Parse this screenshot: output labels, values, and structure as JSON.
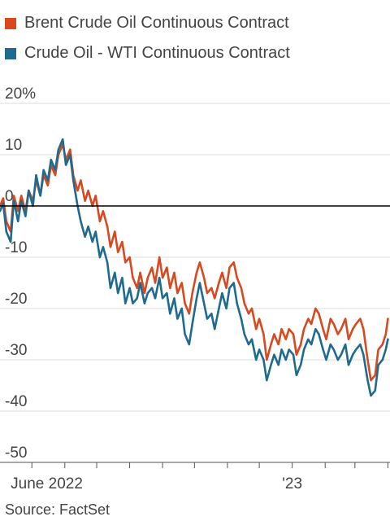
{
  "legend": [
    {
      "label": "Brent Crude Oil Continuous Contract",
      "color": "#d9481f"
    },
    {
      "label": "Crude Oil - WTI Continuous Contract",
      "color": "#1f6a8f"
    }
  ],
  "source": "Source: FactSet",
  "chart_data": {
    "type": "line",
    "title": "",
    "xlabel": "",
    "ylabel": "",
    "y_unit": "%",
    "ylim": [
      -50,
      20
    ],
    "yticks": [
      20,
      10,
      0,
      -10,
      -20,
      -30,
      -40,
      -50
    ],
    "ytick_labels": [
      "20%",
      "10",
      "0",
      "-10",
      "-20",
      "-30",
      "-40",
      "-50"
    ],
    "xlim": [
      "2022-04-01",
      "2023-04-03"
    ],
    "xticks": [
      "2022-05-01",
      "2022-06-01",
      "2022-07-01",
      "2022-08-01",
      "2022-09-01",
      "2022-10-01",
      "2022-11-01",
      "2022-12-01",
      "2023-01-01",
      "2023-02-01",
      "2023-03-01",
      "2023-04-01"
    ],
    "xtick_labels": [
      {
        "date": "2022-05-15",
        "label": "June 2022"
      },
      {
        "date": "2023-01-01",
        "label": "'23"
      }
    ],
    "grid": true,
    "zero_line": true,
    "legend_position": "top-left",
    "series": [
      {
        "name": "Brent Crude Oil Continuous Contract",
        "color": "#d9481f",
        "points": [
          [
            "2022-04-01",
            0
          ],
          [
            "2022-04-04",
            1.5
          ],
          [
            "2022-04-07",
            -3
          ],
          [
            "2022-04-11",
            -5
          ],
          [
            "2022-04-14",
            2
          ],
          [
            "2022-04-18",
            -1
          ],
          [
            "2022-04-21",
            2
          ],
          [
            "2022-04-25",
            -1
          ],
          [
            "2022-04-28",
            3
          ],
          [
            "2022-05-02",
            1
          ],
          [
            "2022-05-05",
            5
          ],
          [
            "2022-05-09",
            2
          ],
          [
            "2022-05-12",
            6
          ],
          [
            "2022-05-16",
            4
          ],
          [
            "2022-05-19",
            8
          ],
          [
            "2022-05-23",
            6
          ],
          [
            "2022-05-26",
            10
          ],
          [
            "2022-05-30",
            12
          ],
          [
            "2022-06-02",
            9
          ],
          [
            "2022-06-06",
            11
          ],
          [
            "2022-06-09",
            6
          ],
          [
            "2022-06-13",
            3
          ],
          [
            "2022-06-16",
            5
          ],
          [
            "2022-06-20",
            1
          ],
          [
            "2022-06-23",
            3
          ],
          [
            "2022-06-27",
            0
          ],
          [
            "2022-06-30",
            2
          ],
          [
            "2022-07-04",
            -3
          ],
          [
            "2022-07-07",
            -1
          ],
          [
            "2022-07-11",
            -4
          ],
          [
            "2022-07-14",
            -8
          ],
          [
            "2022-07-18",
            -5
          ],
          [
            "2022-07-21",
            -9
          ],
          [
            "2022-07-25",
            -7
          ],
          [
            "2022-07-28",
            -11
          ],
          [
            "2022-08-01",
            -10
          ],
          [
            "2022-08-04",
            -14
          ],
          [
            "2022-08-08",
            -16
          ],
          [
            "2022-08-11",
            -13
          ],
          [
            "2022-08-15",
            -17
          ],
          [
            "2022-08-18",
            -14
          ],
          [
            "2022-08-22",
            -12
          ],
          [
            "2022-08-25",
            -15
          ],
          [
            "2022-08-29",
            -10
          ],
          [
            "2022-09-01",
            -14
          ],
          [
            "2022-09-05",
            -12
          ],
          [
            "2022-09-08",
            -16
          ],
          [
            "2022-09-12",
            -13
          ],
          [
            "2022-09-15",
            -17
          ],
          [
            "2022-09-19",
            -15
          ],
          [
            "2022-09-22",
            -19
          ],
          [
            "2022-09-26",
            -21
          ],
          [
            "2022-09-29",
            -17
          ],
          [
            "2022-10-03",
            -13
          ],
          [
            "2022-10-06",
            -11
          ],
          [
            "2022-10-10",
            -14
          ],
          [
            "2022-10-13",
            -17
          ],
          [
            "2022-10-17",
            -16
          ],
          [
            "2022-10-20",
            -18
          ],
          [
            "2022-10-24",
            -15
          ],
          [
            "2022-10-27",
            -13
          ],
          [
            "2022-10-31",
            -16
          ],
          [
            "2022-11-03",
            -12
          ],
          [
            "2022-11-07",
            -11
          ],
          [
            "2022-11-10",
            -14
          ],
          [
            "2022-11-14",
            -16
          ],
          [
            "2022-11-17",
            -19
          ],
          [
            "2022-11-21",
            -21
          ],
          [
            "2022-11-24",
            -20
          ],
          [
            "2022-11-28",
            -24
          ],
          [
            "2022-12-01",
            -22
          ],
          [
            "2022-12-05",
            -25
          ],
          [
            "2022-12-08",
            -30
          ],
          [
            "2022-12-12",
            -27
          ],
          [
            "2022-12-15",
            -25
          ],
          [
            "2022-12-19",
            -27
          ],
          [
            "2022-12-22",
            -24
          ],
          [
            "2022-12-26",
            -26
          ],
          [
            "2022-12-29",
            -24
          ],
          [
            "2023-01-02",
            -25
          ],
          [
            "2023-01-05",
            -29
          ],
          [
            "2023-01-09",
            -27
          ],
          [
            "2023-01-12",
            -24
          ],
          [
            "2023-01-16",
            -22
          ],
          [
            "2023-01-19",
            -23
          ],
          [
            "2023-01-23",
            -20
          ],
          [
            "2023-01-26",
            -21
          ],
          [
            "2023-01-30",
            -24
          ],
          [
            "2023-02-02",
            -26
          ],
          [
            "2023-02-06",
            -22
          ],
          [
            "2023-02-09",
            -23
          ],
          [
            "2023-02-13",
            -25
          ],
          [
            "2023-02-16",
            -24
          ],
          [
            "2023-02-20",
            -22
          ],
          [
            "2023-02-23",
            -26
          ],
          [
            "2023-02-27",
            -24
          ],
          [
            "2023-03-02",
            -23
          ],
          [
            "2023-03-06",
            -22
          ],
          [
            "2023-03-09",
            -24
          ],
          [
            "2023-03-13",
            -30
          ],
          [
            "2023-03-16",
            -34
          ],
          [
            "2023-03-20",
            -33
          ],
          [
            "2023-03-23",
            -28
          ],
          [
            "2023-03-27",
            -27
          ],
          [
            "2023-03-30",
            -25
          ],
          [
            "2023-04-01",
            -22
          ]
        ]
      },
      {
        "name": "Crude Oil - WTI Continuous Contract",
        "color": "#1f6a8f",
        "points": [
          [
            "2022-04-01",
            -1
          ],
          [
            "2022-04-04",
            0.5
          ],
          [
            "2022-04-07",
            -5
          ],
          [
            "2022-04-11",
            -7
          ],
          [
            "2022-04-14",
            1
          ],
          [
            "2022-04-18",
            -3
          ],
          [
            "2022-04-21",
            1
          ],
          [
            "2022-04-25",
            -2
          ],
          [
            "2022-04-28",
            3
          ],
          [
            "2022-05-02",
            0
          ],
          [
            "2022-05-05",
            6
          ],
          [
            "2022-05-09",
            2
          ],
          [
            "2022-05-12",
            7
          ],
          [
            "2022-05-16",
            5
          ],
          [
            "2022-05-19",
            9
          ],
          [
            "2022-05-23",
            7
          ],
          [
            "2022-05-26",
            11
          ],
          [
            "2022-05-30",
            13
          ],
          [
            "2022-06-02",
            8
          ],
          [
            "2022-06-06",
            10
          ],
          [
            "2022-06-09",
            5
          ],
          [
            "2022-06-13",
            0
          ],
          [
            "2022-06-16",
            -3
          ],
          [
            "2022-06-20",
            -6
          ],
          [
            "2022-06-23",
            -4
          ],
          [
            "2022-06-27",
            -7
          ],
          [
            "2022-06-30",
            -5
          ],
          [
            "2022-07-04",
            -10
          ],
          [
            "2022-07-07",
            -8
          ],
          [
            "2022-07-11",
            -11
          ],
          [
            "2022-07-14",
            -16
          ],
          [
            "2022-07-18",
            -13
          ],
          [
            "2022-07-21",
            -17
          ],
          [
            "2022-07-25",
            -14
          ],
          [
            "2022-07-28",
            -19
          ],
          [
            "2022-08-01",
            -16
          ],
          [
            "2022-08-04",
            -19
          ],
          [
            "2022-08-08",
            -18
          ],
          [
            "2022-08-11",
            -15
          ],
          [
            "2022-08-15",
            -19
          ],
          [
            "2022-08-18",
            -17
          ],
          [
            "2022-08-22",
            -16
          ],
          [
            "2022-08-25",
            -18
          ],
          [
            "2022-08-29",
            -14
          ],
          [
            "2022-09-01",
            -18
          ],
          [
            "2022-09-05",
            -17
          ],
          [
            "2022-09-08",
            -21
          ],
          [
            "2022-09-12",
            -18
          ],
          [
            "2022-09-15",
            -22
          ],
          [
            "2022-09-19",
            -20
          ],
          [
            "2022-09-22",
            -25
          ],
          [
            "2022-09-26",
            -27
          ],
          [
            "2022-09-29",
            -23
          ],
          [
            "2022-10-03",
            -18
          ],
          [
            "2022-10-06",
            -15
          ],
          [
            "2022-10-10",
            -19
          ],
          [
            "2022-10-13",
            -22
          ],
          [
            "2022-10-17",
            -21
          ],
          [
            "2022-10-20",
            -24
          ],
          [
            "2022-10-24",
            -20
          ],
          [
            "2022-10-27",
            -17
          ],
          [
            "2022-10-31",
            -20
          ],
          [
            "2022-11-03",
            -16
          ],
          [
            "2022-11-07",
            -15
          ],
          [
            "2022-11-10",
            -19
          ],
          [
            "2022-11-14",
            -22
          ],
          [
            "2022-11-17",
            -25
          ],
          [
            "2022-11-21",
            -27
          ],
          [
            "2022-11-24",
            -26
          ],
          [
            "2022-11-28",
            -30
          ],
          [
            "2022-12-01",
            -28
          ],
          [
            "2022-12-05",
            -30
          ],
          [
            "2022-12-08",
            -34
          ],
          [
            "2022-12-12",
            -31
          ],
          [
            "2022-12-15",
            -29
          ],
          [
            "2022-12-19",
            -31
          ],
          [
            "2022-12-22",
            -28
          ],
          [
            "2022-12-26",
            -30
          ],
          [
            "2022-12-29",
            -28
          ],
          [
            "2023-01-02",
            -29
          ],
          [
            "2023-01-05",
            -33
          ],
          [
            "2023-01-09",
            -31
          ],
          [
            "2023-01-12",
            -28
          ],
          [
            "2023-01-16",
            -26
          ],
          [
            "2023-01-19",
            -27
          ],
          [
            "2023-01-23",
            -24
          ],
          [
            "2023-01-26",
            -25
          ],
          [
            "2023-01-30",
            -28
          ],
          [
            "2023-02-02",
            -30
          ],
          [
            "2023-02-06",
            -27
          ],
          [
            "2023-02-09",
            -28
          ],
          [
            "2023-02-13",
            -30
          ],
          [
            "2023-02-16",
            -29
          ],
          [
            "2023-02-20",
            -27
          ],
          [
            "2023-02-23",
            -31
          ],
          [
            "2023-02-27",
            -29
          ],
          [
            "2023-03-02",
            -28
          ],
          [
            "2023-03-06",
            -27
          ],
          [
            "2023-03-09",
            -29
          ],
          [
            "2023-03-13",
            -34
          ],
          [
            "2023-03-16",
            -37
          ],
          [
            "2023-03-20",
            -36
          ],
          [
            "2023-03-23",
            -31
          ],
          [
            "2023-03-27",
            -30
          ],
          [
            "2023-03-30",
            -28
          ],
          [
            "2023-04-01",
            -26
          ]
        ]
      }
    ]
  }
}
